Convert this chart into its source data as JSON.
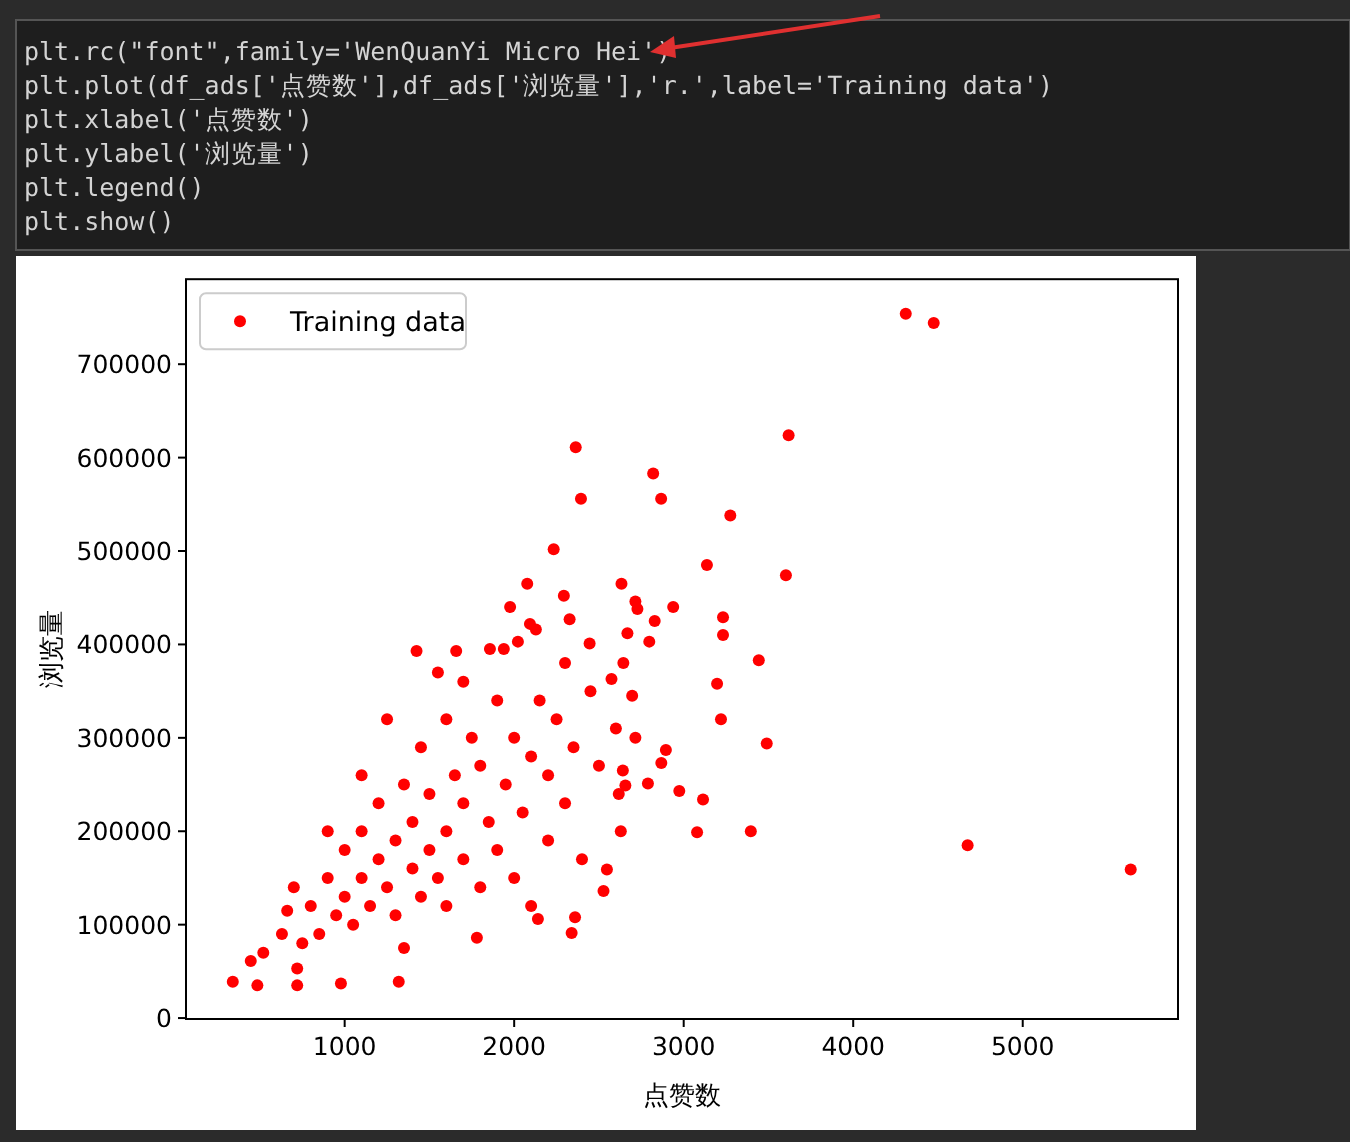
{
  "chart_data": {
    "type": "scatter",
    "xlabel": "点赞数",
    "ylabel": "浏览量",
    "xlim": [
      64,
      5916
    ],
    "ylim": [
      -1000,
      791000
    ],
    "xticks": [
      1000,
      2000,
      3000,
      4000,
      5000
    ],
    "yticks": [
      0,
      100000,
      200000,
      300000,
      400000,
      500000,
      600000,
      700000
    ],
    "legend": "top left",
    "marker": "circle",
    "annotations": [
      "plt.rc(\"font\",family='WenQuanYi Micro Hei')",
      "plt.plot(df_ads['点赞数'],df_ads['浏览量'],'r.',label='Training data')",
      "plt.xlabel('点赞数')",
      "plt.ylabel('浏览量')",
      "plt.legend()",
      "plt.show()"
    ],
    "series": [
      {
        "name": "Training data",
        "color": "#ff0000",
        "x": [
          4310,
          4475,
          3619,
          2363,
          2820,
          2394,
          2867,
          3275,
          2233,
          3137,
          3603,
          2077,
          2293,
          2633,
          2715,
          2727,
          2938,
          1976,
          2093,
          2128,
          2327,
          2829,
          3232,
          3232,
          2668,
          2797,
          2445,
          1424,
          1658,
          1857,
          1939,
          2022,
          3443,
          3490,
          3220,
          3197,
          2974,
          3114,
          3079,
          3396,
          4675,
          5637,
          2895,
          2868,
          2789,
          2641,
          2656,
          2617,
          2629,
          2547,
          2527,
          2715,
          2696,
          2574,
          2644,
          340,
          485,
          446,
          520,
          720,
          978,
          1319,
          720,
          630,
          661,
          2339,
          2359,
          2140,
          1780,
          800,
          850,
          900,
          950,
          1000,
          1000,
          1050,
          1100,
          1100,
          1150,
          1200,
          1200,
          1250,
          1300,
          1300,
          1350,
          1400,
          1400,
          1450,
          1450,
          1500,
          1500,
          1550,
          1600,
          1600,
          1650,
          1700,
          1700,
          1750,
          1800,
          1800,
          1850,
          1900,
          1900,
          1950,
          2000,
          2000,
          2050,
          2100,
          2150,
          2200,
          2200,
          2250,
          2300,
          2350,
          2400,
          2450,
          2500,
          1250,
          1550,
          1700,
          1100,
          900,
          750,
          700,
          1350,
          1600,
          2100,
          2600,
          2300
        ],
        "values": [
          754000,
          744000,
          624000,
          611000,
          583000,
          556000,
          556000,
          538000,
          502000,
          485000,
          474000,
          465000,
          452000,
          465000,
          446000,
          438000,
          440000,
          440000,
          422000,
          416000,
          427000,
          425000,
          429000,
          410000,
          412000,
          403000,
          401000,
          393000,
          393000,
          395000,
          395000,
          403000,
          383000,
          294000,
          320000,
          358000,
          243000,
          234000,
          199000,
          200000,
          185000,
          159000,
          287000,
          273000,
          251000,
          265000,
          249000,
          240000,
          200000,
          159000,
          136000,
          300000,
          345000,
          363000,
          380000,
          39000,
          35000,
          61000,
          70000,
          35000,
          37000,
          39000,
          53000,
          90000,
          115000,
          91000,
          108000,
          106000,
          86000,
          120000,
          90000,
          150000,
          110000,
          130000,
          180000,
          100000,
          150000,
          200000,
          120000,
          170000,
          230000,
          140000,
          110000,
          190000,
          250000,
          160000,
          210000,
          130000,
          290000,
          180000,
          240000,
          150000,
          200000,
          320000,
          260000,
          170000,
          230000,
          300000,
          140000,
          270000,
          210000,
          340000,
          180000,
          250000,
          300000,
          150000,
          220000,
          280000,
          340000,
          190000,
          260000,
          320000,
          230000,
          290000,
          170000,
          350000,
          270000,
          320000,
          370000,
          360000,
          260000,
          200000,
          80000,
          140000,
          75000,
          120000,
          120000,
          310000,
          380000
        ]
      }
    ]
  }
}
